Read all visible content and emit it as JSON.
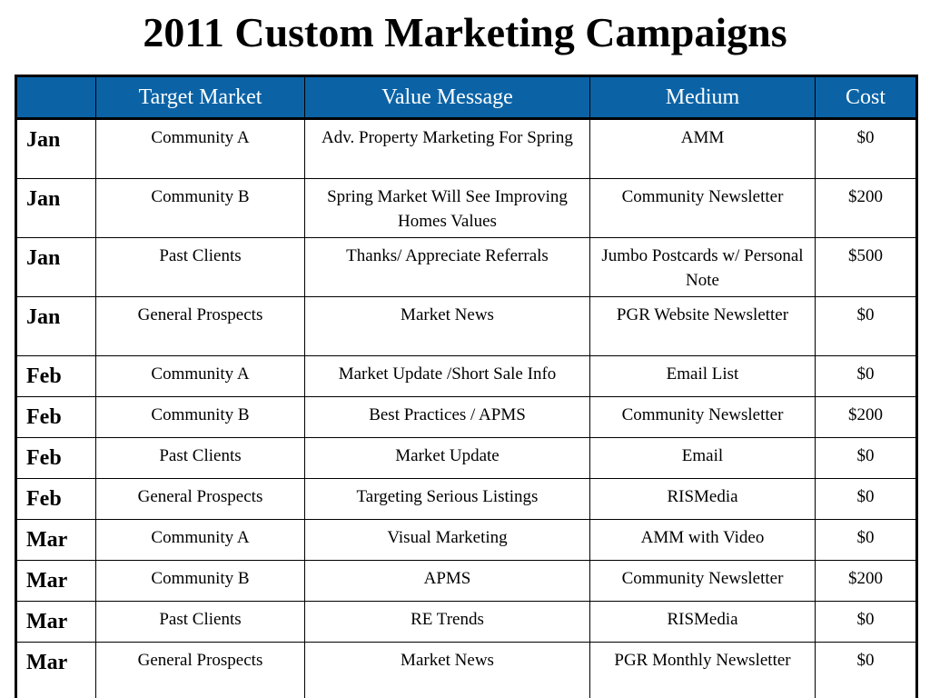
{
  "title": "2011 Custom Marketing Campaigns",
  "table": {
    "headers": [
      "",
      "Target Market",
      "Value Message",
      "Medium",
      "Cost"
    ],
    "rows": [
      {
        "month": "Jan",
        "target": "Community A",
        "message": "Adv. Property Marketing For Spring",
        "medium": "AMM",
        "cost": "$0"
      },
      {
        "month": "Jan",
        "target": "Community B",
        "message": "Spring Market Will See Improving Homes Values",
        "medium": "Community Newsletter",
        "cost": "$200"
      },
      {
        "month": "Jan",
        "target": "Past Clients",
        "message": "Thanks/ Appreciate Referrals",
        "medium": "Jumbo Postcards w/ Personal Note",
        "cost": "$500"
      },
      {
        "month": "Jan",
        "target": "General Prospects",
        "message": "Market News",
        "medium": "PGR Website Newsletter",
        "cost": "$0"
      },
      {
        "month": "Feb",
        "target": "Community A",
        "message": "Market Update /Short Sale Info",
        "medium": "Email List",
        "cost": "$0"
      },
      {
        "month": "Feb",
        "target": "Community B",
        "message": "Best Practices / APMS",
        "medium": "Community Newsletter",
        "cost": "$200"
      },
      {
        "month": "Feb",
        "target": "Past Clients",
        "message": "Market Update",
        "medium": "Email",
        "cost": "$0"
      },
      {
        "month": "Feb",
        "target": "General Prospects",
        "message": "Targeting Serious Listings",
        "medium": "RISMedia",
        "cost": "$0"
      },
      {
        "month": "Mar",
        "target": "Community A",
        "message": "Visual Marketing",
        "medium": "AMM with Video",
        "cost": "$0"
      },
      {
        "month": "Mar",
        "target": "Community B",
        "message": "APMS",
        "medium": "Community Newsletter",
        "cost": "$200"
      },
      {
        "month": "Mar",
        "target": "Past Clients",
        "message": "RE Trends",
        "medium": "RISMedia",
        "cost": "$0"
      },
      {
        "month": "Mar",
        "target": "General Prospects",
        "message": "Market News",
        "medium": "PGR Monthly Newsletter",
        "cost": "$0"
      }
    ]
  },
  "colors": {
    "header_background": "#0b63a6",
    "header_text": "#ffffff",
    "border": "#000000"
  }
}
